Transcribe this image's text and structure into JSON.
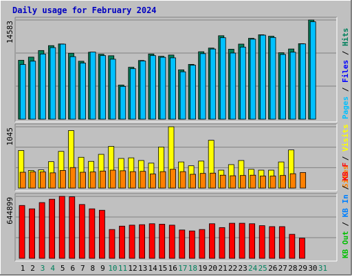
{
  "chart_data": {
    "type": "bar",
    "title": "Daily usage for February 2024",
    "days": [
      "1",
      "2",
      "3",
      "4",
      "5",
      "6",
      "7",
      "8",
      "9",
      "10",
      "11",
      "12",
      "13",
      "14",
      "15",
      "16",
      "17",
      "18",
      "19",
      "20",
      "21",
      "22",
      "23",
      "24",
      "25",
      "26",
      "27",
      "28",
      "29",
      "30",
      "31"
    ],
    "weekend_days": [
      3,
      4,
      10,
      11,
      17,
      18,
      24,
      25,
      31
    ],
    "panels": [
      {
        "id": "hits",
        "max_label": "14583",
        "ymax": 14583,
        "legend": [
          "Hits",
          "Files",
          "Pages"
        ],
        "legend_colors": [
          "#00805c",
          "#0000ff",
          "#00c0ff"
        ],
        "series": [
          {
            "name": "Hits",
            "color": "#00805c",
            "values": [
              8660,
              9125,
              10095,
              10815,
              11060,
              9695,
              8520,
              9840,
              9550,
              9330,
              5020,
              7635,
              8630,
              9585,
              9245,
              9430,
              7255,
              8055,
              9915,
              10455,
              12270,
              10290,
              11040,
              11890,
              12410,
              12195,
              9775,
              10320,
              11100,
              14583,
              0
            ]
          },
          {
            "name": "Files",
            "color": "#00c0ff",
            "values": [
              8040,
              8530,
              9580,
              10525,
              11035,
              9195,
              8250,
              9865,
              9350,
              8820,
              4820,
              7425,
              8555,
              9350,
              9100,
              9020,
              6965,
              7935,
              9635,
              10315,
              11980,
              9725,
              10600,
              11760,
              12355,
              12015,
              9515,
              9850,
              11070,
              14320,
              0
            ]
          }
        ]
      },
      {
        "id": "sites",
        "max_label": "1045",
        "ymax": 1045,
        "legend": [
          "Visits",
          "Sites"
        ],
        "legend_colors": [
          "#ffff00",
          "#ff8000"
        ],
        "series": [
          {
            "name": "Visits",
            "color": "#ffff00",
            "values": [
              640,
              300,
              310,
              450,
              625,
              980,
              525,
              455,
              575,
              710,
              505,
              515,
              470,
              425,
              700,
              1045,
              445,
              380,
              460,
              815,
              305,
              400,
              470,
              320,
              305,
              305,
              445,
              650,
              0,
              0,
              0
            ]
          },
          {
            "name": "Sites",
            "color": "#ff8000",
            "values": [
              270,
              275,
              275,
              260,
              300,
              350,
              270,
              275,
              290,
              305,
              295,
              280,
              285,
              240,
              280,
              320,
              280,
              235,
              250,
              255,
              220,
              210,
              215,
              220,
              205,
              205,
              215,
              245,
              265,
              0,
              0
            ]
          }
        ]
      },
      {
        "id": "kbytes",
        "max_label": "644899",
        "ymax": 644899,
        "legend": [
          "KB F",
          "KB In",
          "KB Out"
        ],
        "legend_colors": [
          "#ff0000",
          "#0080ff",
          "#00c000"
        ],
        "series": [
          {
            "name": "KB F",
            "color": "#ff0000",
            "values": [
              550000,
              515000,
              580000,
              615000,
              645000,
              640000,
              560000,
              515000,
              500000,
              300000,
              335000,
              345000,
              350000,
              360000,
              355000,
              345000,
              295000,
              285000,
              300000,
              360000,
              320000,
              365000,
              365000,
              360000,
              340000,
              330000,
              330000,
              250000,
              210000,
              0,
              0
            ]
          }
        ]
      }
    ]
  }
}
